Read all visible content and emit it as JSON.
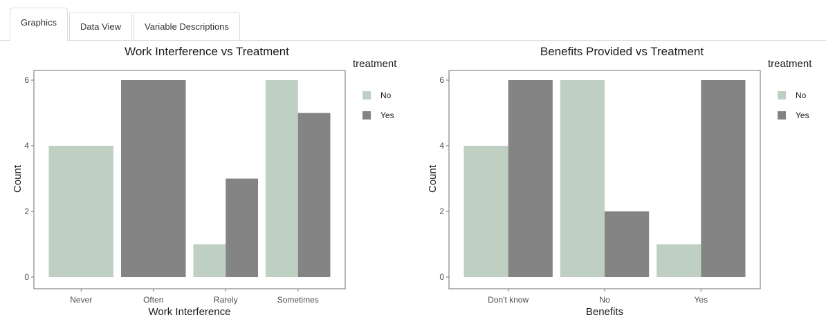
{
  "tabs": [
    {
      "label": "Graphics",
      "active": true
    },
    {
      "label": "Data View",
      "active": false
    },
    {
      "label": "Variable Descriptions",
      "active": false
    }
  ],
  "colors": {
    "No": "#bfcfc2",
    "Yes": "#848484",
    "panel_border": "#6e6e6e"
  },
  "chart_data": [
    {
      "type": "bar",
      "title": "Work Interference vs Treatment",
      "xlabel": "Work Interference",
      "ylabel": "Count",
      "ylim": [
        0,
        6
      ],
      "yticks": [
        0,
        2,
        4,
        6
      ],
      "legend_title": "treatment",
      "legend_position": "right",
      "grid": false,
      "categories": [
        "Never",
        "Often",
        "Rarely",
        "Sometimes"
      ],
      "series": [
        {
          "name": "No",
          "values": [
            4,
            null,
            1,
            6
          ]
        },
        {
          "name": "Yes",
          "values": [
            null,
            6,
            3,
            5
          ]
        }
      ]
    },
    {
      "type": "bar",
      "title": "Benefits Provided vs Treatment",
      "xlabel": "Benefits",
      "ylabel": "Count",
      "ylim": [
        0,
        6
      ],
      "yticks": [
        0,
        2,
        4,
        6
      ],
      "legend_title": "treatment",
      "legend_position": "right",
      "grid": false,
      "categories": [
        "Don't know",
        "No",
        "Yes"
      ],
      "series": [
        {
          "name": "No",
          "values": [
            4,
            6,
            1
          ]
        },
        {
          "name": "Yes",
          "values": [
            6,
            2,
            6
          ]
        }
      ]
    }
  ]
}
